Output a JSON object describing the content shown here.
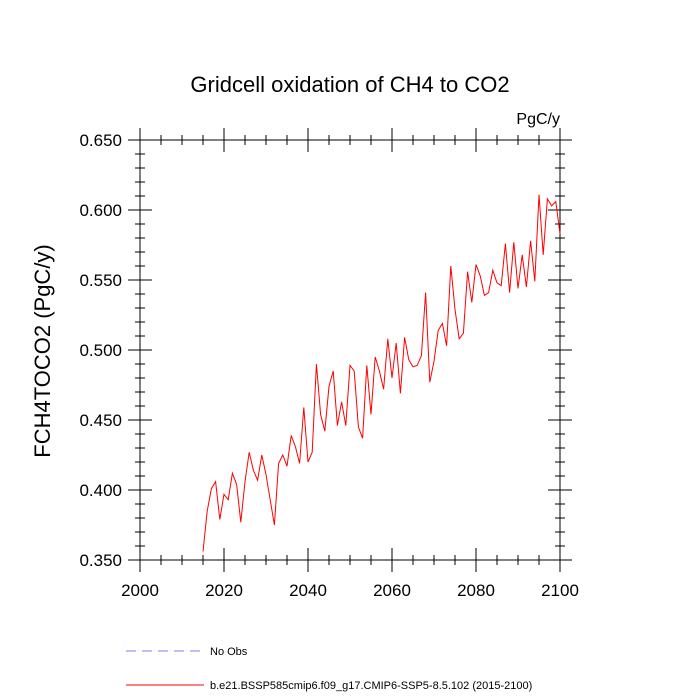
{
  "chart_data": {
    "type": "line",
    "title": "Gridcell oxidation of CH4 to CO2",
    "units_label": "PgC/y",
    "xlabel": "",
    "ylabel": "FCH4TOCO2  (PgC/y)",
    "xlim": [
      2000,
      2100
    ],
    "ylim": [
      0.35,
      0.65
    ],
    "x_ticks": [
      2000,
      2020,
      2040,
      2060,
      2080,
      2100
    ],
    "x_tick_labels": [
      "2000",
      "2020",
      "2040",
      "2060",
      "2080",
      "2100"
    ],
    "y_ticks": [
      0.35,
      0.4,
      0.45,
      0.5,
      0.55,
      0.6,
      0.65
    ],
    "y_tick_labels": [
      "0.350",
      "0.400",
      "0.450",
      "0.500",
      "0.550",
      "0.600",
      "0.650"
    ],
    "grid": false,
    "legend_position": "bottom",
    "series": [
      {
        "name": "b.e21.BSSP585cmip6.f09_g17.CMIP6-SSP5-8.5.102 (2015-2100)",
        "color": "#ff0000",
        "style": "solid",
        "x": [
          2015,
          2016,
          2017,
          2018,
          2019,
          2020,
          2021,
          2022,
          2023,
          2024,
          2025,
          2026,
          2027,
          2028,
          2029,
          2030,
          2031,
          2032,
          2033,
          2034,
          2035,
          2036,
          2037,
          2038,
          2039,
          2040,
          2041,
          2042,
          2043,
          2044,
          2045,
          2046,
          2047,
          2048,
          2049,
          2050,
          2051,
          2052,
          2053,
          2054,
          2055,
          2056,
          2057,
          2058,
          2059,
          2060,
          2061,
          2062,
          2063,
          2064,
          2065,
          2066,
          2067,
          2068,
          2069,
          2070,
          2071,
          2072,
          2073,
          2074,
          2075,
          2076,
          2077,
          2078,
          2079,
          2080,
          2081,
          2082,
          2083,
          2084,
          2085,
          2086,
          2087,
          2088,
          2089,
          2090,
          2091,
          2092,
          2093,
          2094,
          2095,
          2096,
          2097,
          2098,
          2099,
          2100
        ],
        "values": [
          0.356,
          0.385,
          0.401,
          0.406,
          0.379,
          0.397,
          0.393,
          0.412,
          0.404,
          0.377,
          0.406,
          0.427,
          0.414,
          0.407,
          0.425,
          0.411,
          0.393,
          0.375,
          0.419,
          0.425,
          0.417,
          0.439,
          0.431,
          0.419,
          0.459,
          0.42,
          0.427,
          0.49,
          0.454,
          0.442,
          0.474,
          0.485,
          0.446,
          0.463,
          0.446,
          0.489,
          0.485,
          0.445,
          0.437,
          0.489,
          0.454,
          0.495,
          0.485,
          0.472,
          0.508,
          0.48,
          0.505,
          0.469,
          0.509,
          0.493,
          0.488,
          0.489,
          0.496,
          0.541,
          0.477,
          0.492,
          0.514,
          0.519,
          0.503,
          0.56,
          0.529,
          0.508,
          0.512,
          0.556,
          0.534,
          0.561,
          0.553,
          0.539,
          0.541,
          0.557,
          0.548,
          0.546,
          0.576,
          0.541,
          0.577,
          0.544,
          0.568,
          0.545,
          0.578,
          0.549,
          0.611,
          0.568,
          0.608,
          0.603,
          0.606,
          0.583
        ]
      },
      {
        "name": "No Obs",
        "color": "#7b7bff",
        "style": "dashed",
        "x": [],
        "values": []
      }
    ]
  }
}
